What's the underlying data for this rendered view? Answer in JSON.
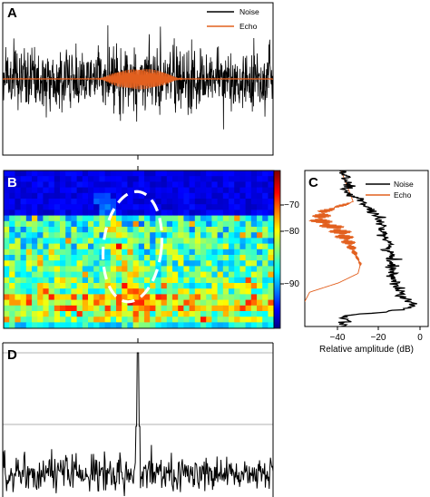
{
  "colors": {
    "noise": "#000000",
    "echo": "#e2601f",
    "ellipse": "#ffffff",
    "frame": "#000000"
  },
  "chart_data": [
    {
      "type": "line",
      "panel": "A",
      "legend": [
        {
          "name": "Noise",
          "color": "#000000"
        },
        {
          "name": "Echo",
          "color": "#e2601f"
        }
      ],
      "series": [
        {
          "name": "Noise",
          "description_of_shape": "dense random waveform across full duration"
        },
        {
          "name": "Echo",
          "description_of_shape": "short modulated pulse centered mid-record"
        }
      ],
      "grid": false
    },
    {
      "type": "heatmap",
      "panel": "B",
      "colorbar": {
        "ticks": [
          -70,
          -80,
          -90
        ],
        "tick_labels": [
          "−70",
          "−80",
          "−90"
        ],
        "range": [
          -97,
          -67
        ],
        "colormap": "jet"
      },
      "annotation": "dashed white ellipse around faint echo track"
    },
    {
      "type": "line",
      "panel": "C",
      "orientation": "vertical profile",
      "legend": [
        {
          "name": "Noise",
          "color": "#000000"
        },
        {
          "name": "Echo",
          "color": "#e2601f"
        }
      ],
      "x_ticks": [
        -40,
        -20,
        0
      ],
      "x_tick_labels": [
        "−40",
        "−20",
        "0"
      ],
      "xlim": [
        -48,
        3
      ],
      "xlabel": "Relative amplitude (dB)",
      "noise_profile": [
        {
          "depth": 0.0,
          "db": -33
        },
        {
          "depth": 0.08,
          "db": -30
        },
        {
          "depth": 0.14,
          "db": -31
        },
        {
          "depth": 0.2,
          "db": -24
        },
        {
          "depth": 0.28,
          "db": -20
        },
        {
          "depth": 0.36,
          "db": -16
        },
        {
          "depth": 0.44,
          "db": -14
        },
        {
          "depth": 0.52,
          "db": -13
        },
        {
          "depth": 0.6,
          "db": -12
        },
        {
          "depth": 0.68,
          "db": -11
        },
        {
          "depth": 0.76,
          "db": -10
        },
        {
          "depth": 0.82,
          "db": -6
        },
        {
          "depth": 0.86,
          "db": -2
        },
        {
          "depth": 0.89,
          "db": -6
        },
        {
          "depth": 0.93,
          "db": -30
        },
        {
          "depth": 1.0,
          "db": -32
        }
      ],
      "echo_profile": [
        {
          "depth": 0.0,
          "db": -33
        },
        {
          "depth": 0.12,
          "db": -30
        },
        {
          "depth": 0.2,
          "db": -28
        },
        {
          "depth": 0.26,
          "db": -40
        },
        {
          "depth": 0.32,
          "db": -42
        },
        {
          "depth": 0.38,
          "db": -34
        },
        {
          "depth": 0.46,
          "db": -30
        },
        {
          "depth": 0.54,
          "db": -27
        },
        {
          "depth": 0.6,
          "db": -25
        },
        {
          "depth": 0.66,
          "db": -26
        },
        {
          "depth": 0.72,
          "db": -34
        },
        {
          "depth": 0.78,
          "db": -46
        },
        {
          "depth": 0.84,
          "db": -48
        }
      ],
      "grid": false
    },
    {
      "type": "line",
      "panel": "D",
      "series": [
        {
          "name": "",
          "description_of_shape": "noisy baseline with single sharp peak at center"
        }
      ],
      "grid": "two horizontal reference lines"
    }
  ],
  "panels": {
    "a_label": "A",
    "b_label": "B",
    "c_label": "C",
    "d_label": "D"
  },
  "legend_a": {
    "noise": "Noise",
    "echo": "Echo"
  },
  "legend_c": {
    "noise": "Noise",
    "echo": "Echo"
  },
  "colorbar_labels": [
    "−70",
    "−80",
    "−90"
  ],
  "c_axis": {
    "ticks": [
      "−40",
      "−20",
      "0"
    ],
    "xlabel": "Relative amplitude (dB)"
  }
}
